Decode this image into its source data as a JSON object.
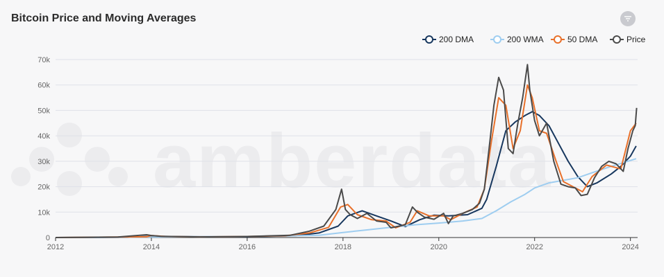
{
  "header": {
    "title": "Bitcoin Price and Moving Averages",
    "filter_icon": "filter-icon"
  },
  "watermark": {
    "text": "amberdata"
  },
  "colors": {
    "dma200": "#17375e",
    "wma200": "#9ecdf0",
    "dma50": "#e8702a",
    "price": "#4a4a4a",
    "grid": "#dfe1e8"
  },
  "chart_data": {
    "type": "line",
    "title": "Bitcoin Price and Moving Averages",
    "xlabel": "",
    "ylabel": "",
    "xlim": [
      2012,
      2024.15
    ],
    "ylim": [
      0,
      70000
    ],
    "x_ticks": [
      "2012",
      "2014",
      "2016",
      "2018",
      "2020",
      "2022",
      "2024"
    ],
    "y_ticks": [
      "0",
      "10k",
      "20k",
      "30k",
      "40k",
      "50k",
      "60k",
      "70k"
    ],
    "grid": "horizontal",
    "legend_position": "top-right",
    "series": [
      {
        "name": "200 DMA",
        "color": "#17375e",
        "x": [
          2012,
          2013.5,
          2014,
          2015,
          2016,
          2017,
          2017.5,
          2017.9,
          2018.1,
          2018.4,
          2018.7,
          2019.0,
          2019.3,
          2019.6,
          2019.9,
          2020.2,
          2020.6,
          2020.9,
          2021.0,
          2021.2,
          2021.4,
          2021.6,
          2021.8,
          2021.95,
          2022.1,
          2022.3,
          2022.5,
          2022.7,
          2022.9,
          2023.1,
          2023.3,
          2023.6,
          2023.8,
          2024.0,
          2024.12
        ],
        "y": [
          0,
          100,
          500,
          300,
          300,
          700,
          1800,
          4500,
          8500,
          10500,
          8500,
          6500,
          4300,
          7000,
          8800,
          8500,
          9000,
          11500,
          15000,
          28000,
          42000,
          45500,
          48000,
          49500,
          48000,
          44000,
          37000,
          30000,
          24000,
          20000,
          21500,
          25000,
          28000,
          32000,
          36000
        ]
      },
      {
        "name": "200 WMA",
        "color": "#9ecdf0",
        "x": [
          2012,
          2014,
          2016,
          2017,
          2017.5,
          2018,
          2018.5,
          2019,
          2019.5,
          2020,
          2020.5,
          2020.9,
          2021.2,
          2021.5,
          2021.8,
          2022,
          2022.3,
          2022.6,
          2022.9,
          2023.2,
          2023.6,
          2024.12
        ],
        "y": [
          0,
          200,
          400,
          700,
          900,
          2000,
          3000,
          4000,
          5000,
          5700,
          6500,
          7500,
          10500,
          14000,
          17000,
          19500,
          21500,
          22500,
          23500,
          25500,
          28000,
          31000
        ]
      },
      {
        "name": "50 DMA",
        "color": "#e8702a",
        "x": [
          2012,
          2013.9,
          2014.0,
          2014.3,
          2015,
          2016,
          2016.8,
          2017.3,
          2017.7,
          2017.95,
          2018.1,
          2018.3,
          2018.6,
          2018.9,
          2019.1,
          2019.4,
          2019.55,
          2019.8,
          2020.1,
          2020.25,
          2020.5,
          2020.8,
          2020.95,
          2021.1,
          2021.25,
          2021.4,
          2021.55,
          2021.7,
          2021.85,
          2021.95,
          2022.1,
          2022.25,
          2022.45,
          2022.6,
          2022.85,
          2023.0,
          2023.2,
          2023.5,
          2023.8,
          2024.0,
          2024.12
        ],
        "y": [
          0,
          300,
          800,
          400,
          250,
          400,
          700,
          1800,
          4000,
          12000,
          13000,
          9000,
          7000,
          6500,
          3800,
          6000,
          10500,
          8500,
          8500,
          7000,
          9500,
          12000,
          19000,
          38000,
          55000,
          52000,
          35000,
          42000,
          60000,
          55000,
          42000,
          41000,
          30000,
          22000,
          19500,
          18000,
          24000,
          28500,
          27000,
          42000,
          45000
        ]
      },
      {
        "name": "Price",
        "color": "#4a4a4a",
        "x": [
          2012,
          2013.3,
          2013.9,
          2014.0,
          2014.2,
          2015,
          2016,
          2016.9,
          2017.3,
          2017.6,
          2017.85,
          2017.97,
          2018.05,
          2018.15,
          2018.3,
          2018.5,
          2018.7,
          2018.9,
          2019.0,
          2019.3,
          2019.45,
          2019.55,
          2019.7,
          2019.9,
          2020.1,
          2020.2,
          2020.3,
          2020.5,
          2020.7,
          2020.85,
          2020.95,
          2021.05,
          2021.15,
          2021.25,
          2021.35,
          2021.45,
          2021.55,
          2021.65,
          2021.75,
          2021.85,
          2021.9,
          2022.0,
          2022.1,
          2022.25,
          2022.4,
          2022.55,
          2022.7,
          2022.85,
          2022.97,
          2023.1,
          2023.25,
          2023.4,
          2023.55,
          2023.7,
          2023.85,
          2023.95,
          2024.05,
          2024.1,
          2024.13
        ],
        "y": [
          0,
          200,
          1100,
          800,
          500,
          250,
          400,
          900,
          2500,
          4500,
          11000,
          19000,
          11000,
          9000,
          7500,
          9500,
          6500,
          6000,
          3800,
          5000,
          12000,
          10000,
          8000,
          7200,
          9500,
          5500,
          8500,
          9500,
          11000,
          13500,
          19000,
          35000,
          52000,
          63000,
          58000,
          35000,
          33000,
          45000,
          55000,
          68000,
          58000,
          46000,
          40000,
          45000,
          30000,
          21000,
          20000,
          19500,
          16500,
          17000,
          23500,
          28000,
          30000,
          29000,
          26000,
          35000,
          42000,
          44000,
          51000
        ]
      }
    ]
  }
}
